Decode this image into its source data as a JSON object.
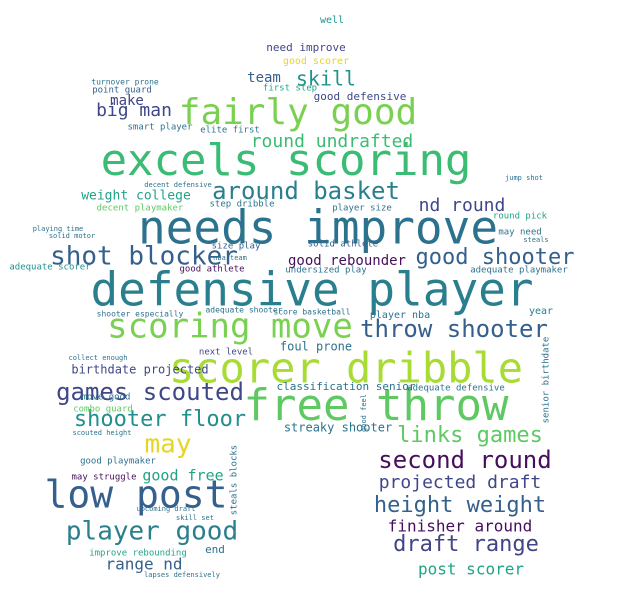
{
  "word_cloud": {
    "words": [
      {
        "text": "defensive player",
        "color": "#2a7f8e"
      },
      {
        "text": "needs improve",
        "color": "#2c728e"
      },
      {
        "text": "excels scoring",
        "color": "#3bbc74"
      },
      {
        "text": "scorer dribble",
        "color": "#a8db34"
      },
      {
        "text": "free throw",
        "color": "#5ec962"
      },
      {
        "text": "fairly good",
        "color": "#7ad151"
      },
      {
        "text": "scoring move",
        "color": "#7ad151"
      },
      {
        "text": "shot blocker",
        "color": "#35608d"
      },
      {
        "text": "low post",
        "color": "#35608d"
      },
      {
        "text": "around basket",
        "color": "#2a7f8e"
      },
      {
        "text": "throw shooter",
        "color": "#35608d"
      },
      {
        "text": "games scouted",
        "color": "#3f4788"
      },
      {
        "text": "player good",
        "color": "#2a7f8e"
      },
      {
        "text": "good shooter",
        "color": "#35608d"
      },
      {
        "text": "second round",
        "color": "#450f5b"
      },
      {
        "text": "height weight",
        "color": "#35608d"
      },
      {
        "text": "links games",
        "color": "#5ec962"
      },
      {
        "text": "shooter floor",
        "color": "#21908d"
      },
      {
        "text": "draft range",
        "color": "#414487"
      },
      {
        "text": "may",
        "color": "#e6d524"
      },
      {
        "text": "round undrafted",
        "color": "#3bbc74"
      },
      {
        "text": "nd round",
        "color": "#3f4788"
      },
      {
        "text": "projected draft",
        "color": "#3f4788"
      },
      {
        "text": "skill",
        "color": "#1f948c"
      },
      {
        "text": "big man",
        "color": "#3f4788"
      },
      {
        "text": "make",
        "color": "#414487"
      },
      {
        "text": "finisher around",
        "color": "#450f5b"
      },
      {
        "text": "post scorer",
        "color": "#20a386"
      },
      {
        "text": "good rebounder",
        "color": "#450f5b"
      },
      {
        "text": "range nd",
        "color": "#35608d"
      },
      {
        "text": "good free",
        "color": "#20a386"
      },
      {
        "text": "team",
        "color": "#35608d"
      },
      {
        "text": "weight college",
        "color": "#20a386"
      },
      {
        "text": "birthdate projected",
        "color": "#3f4788"
      },
      {
        "text": "classification senior",
        "color": "#2c728e"
      },
      {
        "text": "streaky shooter",
        "color": "#2c728e"
      },
      {
        "text": "foul prone",
        "color": "#2c728e"
      },
      {
        "text": "player nba",
        "color": "#2c728e"
      },
      {
        "text": "good defensive",
        "color": "#3f4788"
      },
      {
        "text": "need improve",
        "color": "#3f4788"
      },
      {
        "text": "well",
        "color": "#1f948c"
      },
      {
        "text": "good scorer",
        "color": "#e6d524"
      },
      {
        "text": "point guard",
        "color": "#35608d"
      },
      {
        "text": "smart player",
        "color": "#2c728e"
      },
      {
        "text": "elite first",
        "color": "#2c728e"
      },
      {
        "text": "first step",
        "color": "#20a386"
      },
      {
        "text": "decent playmaker",
        "color": "#5ec962"
      },
      {
        "text": "step dribble",
        "color": "#2c728e"
      },
      {
        "text": "player size",
        "color": "#2c728e"
      },
      {
        "text": "round pick",
        "color": "#20a386"
      },
      {
        "text": "may need",
        "color": "#2c728e"
      },
      {
        "text": "size play",
        "color": "#35608d"
      },
      {
        "text": "solid athlete",
        "color": "#35608d"
      },
      {
        "text": "good athlete",
        "color": "#450f5b"
      },
      {
        "text": "adequate playmaker",
        "color": "#2c728e"
      },
      {
        "text": "adequate scorer",
        "color": "#21908d"
      },
      {
        "text": "undersized play",
        "color": "#2c728e"
      },
      {
        "text": "shooter especially",
        "color": "#2c728e"
      },
      {
        "text": "adequate shooter",
        "color": "#2c728e"
      },
      {
        "text": "score basketball",
        "color": "#2c728e"
      },
      {
        "text": "year",
        "color": "#2a7f8e"
      },
      {
        "text": "next level",
        "color": "#3f4788"
      },
      {
        "text": "move good",
        "color": "#2c728e"
      },
      {
        "text": "combo guard",
        "color": "#5ec962"
      },
      {
        "text": "adequate defensive",
        "color": "#2c728e"
      },
      {
        "text": "senior birthdate",
        "color": "#2c728e"
      },
      {
        "text": "steals blocks",
        "color": "#2c728e"
      },
      {
        "text": "good playmaker",
        "color": "#2c728e"
      },
      {
        "text": "may struggle",
        "color": "#450f5b"
      },
      {
        "text": "improve rebounding",
        "color": "#20a386"
      },
      {
        "text": "end",
        "color": "#2c728e"
      },
      {
        "text": "turnover prone",
        "color": "#2c728e"
      },
      {
        "text": "nba team",
        "color": "#2c728e"
      },
      {
        "text": "scouted height",
        "color": "#2c728e"
      },
      {
        "text": "lapses defensively",
        "color": "#2c728e"
      },
      {
        "text": "upcoming draft",
        "color": "#2c728e"
      },
      {
        "text": "skill set",
        "color": "#2c728e"
      },
      {
        "text": "collect enough",
        "color": "#2c728e"
      },
      {
        "text": "solid motor",
        "color": "#2c728e"
      },
      {
        "text": "playing time",
        "color": "#2c728e"
      },
      {
        "text": "decent defensive",
        "color": "#2c728e"
      },
      {
        "text": "jump shot",
        "color": "#2c728e"
      },
      {
        "text": "good feel",
        "color": "#2c728e"
      },
      {
        "text": "steals",
        "color": "#2c728e"
      }
    ]
  }
}
